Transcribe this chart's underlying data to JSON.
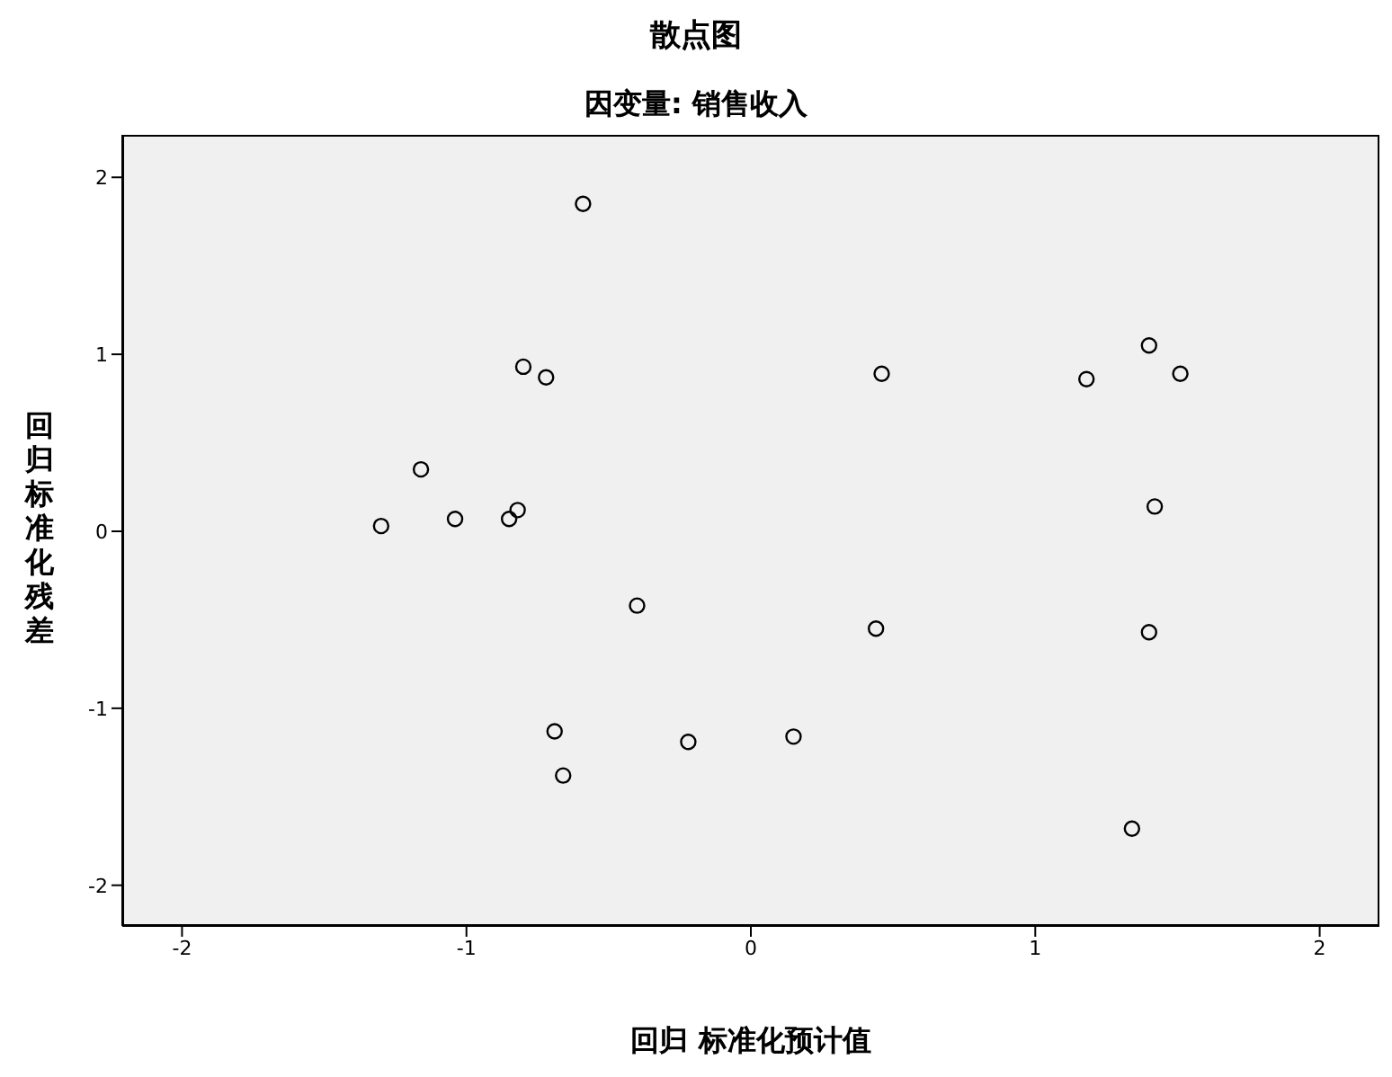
{
  "chart_data": {
    "type": "scatter",
    "title": "散点图",
    "subtitle": "因变量: 销售收入",
    "xlabel": "回归 标准化预计值",
    "ylabel": "回归标准化残差",
    "xlim": [
      -2.21,
      2.21
    ],
    "ylim": [
      -2.23,
      2.24
    ],
    "xticks": [
      -2,
      -1,
      0,
      1,
      2
    ],
    "yticks": [
      -2,
      -1,
      0,
      1,
      2
    ],
    "marker": "circle",
    "legend": false,
    "series": [
      {
        "color": "#000000",
        "x": [
          -0.59,
          -0.8,
          -0.72,
          -1.16,
          -1.3,
          -1.04,
          -0.82,
          -0.85,
          -0.4,
          -0.69,
          -0.66,
          -0.22,
          0.15,
          0.46,
          0.44,
          1.18,
          1.4,
          1.51,
          1.42,
          1.4,
          1.34
        ],
        "values": [
          1.85,
          0.93,
          0.87,
          0.35,
          0.03,
          0.07,
          0.12,
          0.07,
          -0.42,
          -1.13,
          -1.38,
          -1.19,
          -1.16,
          0.89,
          -0.55,
          0.86,
          1.05,
          0.89,
          0.14,
          -0.57,
          -1.68
        ]
      }
    ]
  }
}
